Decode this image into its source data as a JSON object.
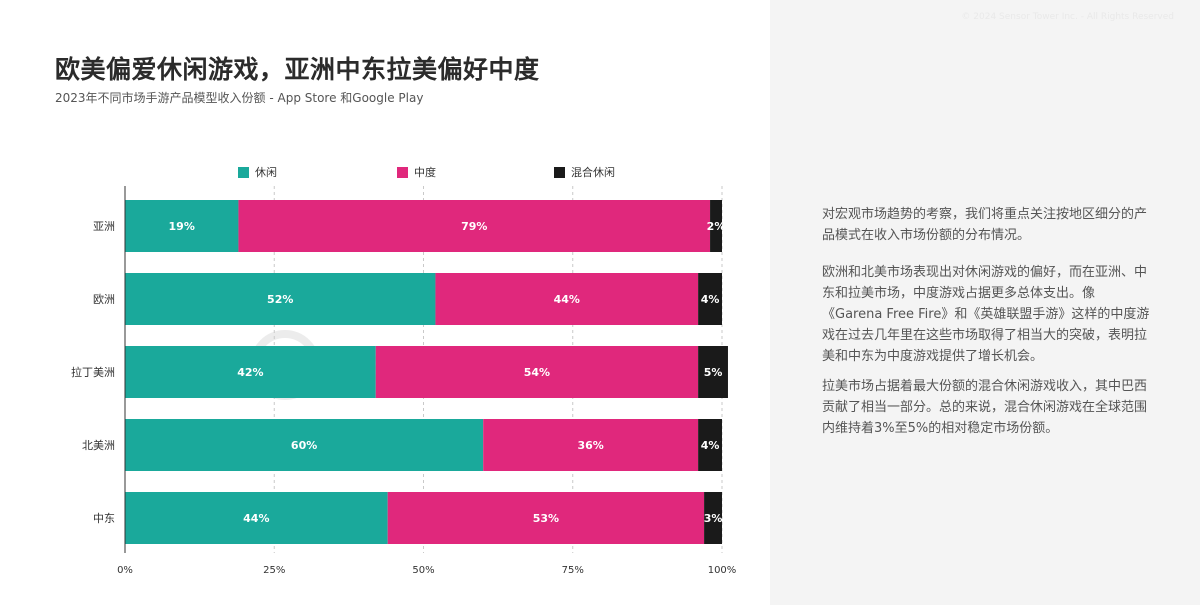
{
  "header_note": "© 2024 Sensor Tower Inc. - All Rights Reserved",
  "title": "欧美偏爱休闲游戏，亚洲中东拉美偏好中度",
  "subtitle": "2023年不同市场手游产品模型收入份额 - App Store 和Google Play",
  "watermark": "SensorTower",
  "colors": {
    "casual": "#1aa99b",
    "midcore": "#e0287c",
    "hybrid": "#1a1a1a"
  },
  "chart_data": {
    "type": "bar",
    "orientation": "horizontal",
    "stacked": true,
    "categories": [
      "亚洲",
      "欧洲",
      "拉丁美洲",
      "北美洲",
      "中东"
    ],
    "series": [
      {
        "name": "休闲",
        "values": [
          19,
          52,
          42,
          60,
          44
        ],
        "labels": [
          "19%",
          "52%",
          "42%",
          "60%",
          "44%"
        ]
      },
      {
        "name": "中度",
        "values": [
          79,
          44,
          54,
          36,
          53
        ],
        "labels": [
          "79%",
          "44%",
          "54%",
          "36%",
          "53%"
        ]
      },
      {
        "name": "混合休闲",
        "values": [
          2,
          4,
          5,
          4,
          3
        ],
        "labels": [
          "2%",
          "4%",
          "5%",
          "4%",
          "3%"
        ]
      }
    ],
    "xlim": [
      0,
      100
    ],
    "xticks": [
      "0%",
      "25%",
      "50%",
      "75%",
      "100%"
    ],
    "grid": true,
    "legend_position": "top"
  },
  "paragraphs": [
    "对宏观市场趋势的考察，我们将重点关注按地区细分的产品模式在收入市场份额的分布情况。",
    "欧洲和北美市场表现出对休闲游戏的偏好，而在亚洲、中东和拉美市场，中度游戏占据更多总体支出。像《Garena Free Fire》和《英雄联盟手游》这样的中度游戏在过去几年里在这些市场取得了相当大的突破，表明拉美和中东为中度游戏提供了增长机会。",
    "拉美市场占据着最大份额的混合休闲游戏收入，其中巴西贡献了相当一部分。总的来说，混合休闲游戏在全球范围内维持着3%至5%的相对稳定市场份额。"
  ]
}
